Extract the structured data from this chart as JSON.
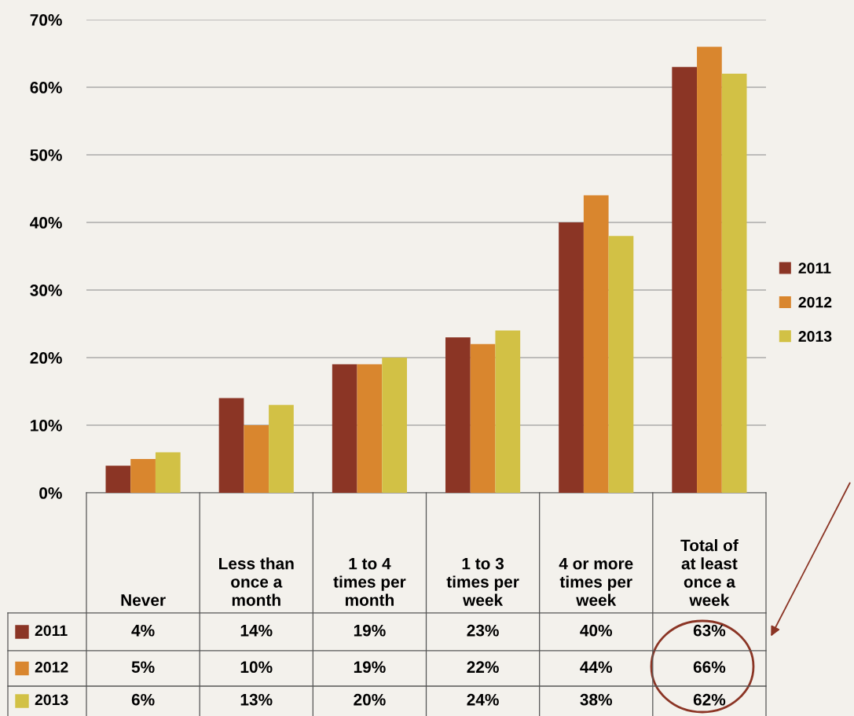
{
  "chart_data": {
    "type": "bar",
    "categories": [
      "Never",
      "Less than\nonce a\nmonth",
      "1 to 4\ntimes per\nmonth",
      "1 to 3\ntimes per\nweek",
      "4 or more\ntimes per\nweek",
      "Total of\nat least\nonce a\nweek"
    ],
    "series": [
      {
        "name": "2011",
        "color": "#8b3525",
        "values": [
          4,
          14,
          19,
          23,
          40,
          63
        ],
        "value_labels": [
          "4%",
          "14%",
          "19%",
          "23%",
          "40%",
          "63%"
        ]
      },
      {
        "name": "2012",
        "color": "#d9862e",
        "values": [
          5,
          10,
          19,
          22,
          44,
          66
        ],
        "value_labels": [
          "5%",
          "10%",
          "19%",
          "22%",
          "44%",
          "66%"
        ]
      },
      {
        "name": "2013",
        "color": "#d2c145",
        "values": [
          6,
          13,
          20,
          24,
          38,
          62
        ],
        "value_labels": [
          "6%",
          "13%",
          "20%",
          "24%",
          "38%",
          "62%"
        ]
      }
    ],
    "ylim": [
      0,
      70
    ],
    "yticks": [
      {
        "value": 0,
        "label": "0%"
      },
      {
        "value": 10,
        "label": "10%"
      },
      {
        "value": 20,
        "label": "20%"
      },
      {
        "value": 30,
        "label": "30%"
      },
      {
        "value": 40,
        "label": "40%"
      },
      {
        "value": 50,
        "label": "50%"
      },
      {
        "value": 60,
        "label": "60%"
      },
      {
        "value": 70,
        "label": "70%"
      }
    ],
    "grid": "y",
    "legend": "right"
  }
}
